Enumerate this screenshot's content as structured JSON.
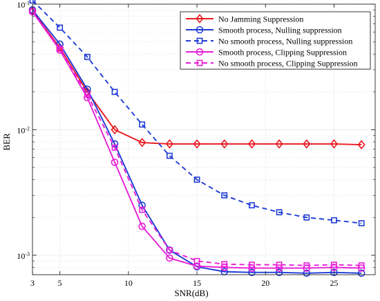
{
  "chart_data": {
    "type": "line",
    "title": "",
    "xlabel": "SNR(dB)",
    "ylabel": "BER",
    "xlim": [
      3,
      28
    ],
    "ylim": [
      0.0007,
      0.1
    ],
    "yscale": "log",
    "grid": true,
    "legend_position": "top-right",
    "xticks": [
      3,
      5,
      10,
      15,
      20,
      25
    ],
    "yticks": [
      {
        "value": 0.1,
        "base": "10",
        "exp": "-1"
      },
      {
        "value": 0.01,
        "base": "10",
        "exp": "-2"
      },
      {
        "value": 0.001,
        "base": "10",
        "exp": "-3"
      }
    ],
    "series": [
      {
        "name": "No Jamming Suppression",
        "color": "#e8181f",
        "dash": "solid",
        "marker": "diamond",
        "x": [
          3,
          5,
          7,
          9,
          11,
          13,
          15,
          17,
          19,
          21,
          23,
          25,
          27
        ],
        "y": [
          0.088,
          0.045,
          0.02,
          0.01,
          0.0079,
          0.0077,
          0.0077,
          0.0077,
          0.0077,
          0.0077,
          0.0077,
          0.0077,
          0.0076
        ]
      },
      {
        "name": "Smooth process, Nulling suppression",
        "color": "#1f3bd6",
        "dash": "solid",
        "marker": "circle",
        "x": [
          3,
          5,
          7,
          9,
          11,
          13,
          15,
          17,
          19,
          21,
          23,
          25,
          27
        ],
        "y": [
          0.09,
          0.048,
          0.021,
          0.0077,
          0.0025,
          0.0011,
          0.00081,
          0.00074,
          0.00073,
          0.00073,
          0.00072,
          0.00073,
          0.00072
        ]
      },
      {
        "name": "No smooth process, Nulling suppression",
        "color": "#1f3bd6",
        "dash": "dashed",
        "marker": "square",
        "x": [
          3,
          5,
          7,
          9,
          11,
          13,
          15,
          17,
          19,
          21,
          23,
          25,
          27
        ],
        "y": [
          0.107,
          0.065,
          0.038,
          0.02,
          0.011,
          0.0062,
          0.004,
          0.003,
          0.0025,
          0.0022,
          0.002,
          0.0019,
          0.0018
        ]
      },
      {
        "name": "Smooth process, Clipping Suppression",
        "color": "#e81fd6",
        "dash": "solid",
        "marker": "circle",
        "x": [
          3,
          5,
          7,
          9,
          11,
          13,
          15,
          17,
          19,
          21,
          23,
          25,
          27
        ],
        "y": [
          0.087,
          0.043,
          0.018,
          0.0055,
          0.0017,
          0.00095,
          0.00082,
          0.0008,
          0.00079,
          0.00079,
          0.00079,
          0.0008,
          0.00079
        ]
      },
      {
        "name": "No smooth process, Clipping Suppression",
        "color": "#e81fd6",
        "dash": "dashed",
        "marker": "square",
        "x": [
          3,
          5,
          7,
          9,
          11,
          13,
          15,
          17,
          19,
          21,
          23,
          25,
          27
        ],
        "y": [
          0.088,
          0.044,
          0.019,
          0.0072,
          0.0023,
          0.0011,
          0.0009,
          0.00085,
          0.00084,
          0.00084,
          0.00083,
          0.00084,
          0.00083
        ]
      }
    ]
  }
}
